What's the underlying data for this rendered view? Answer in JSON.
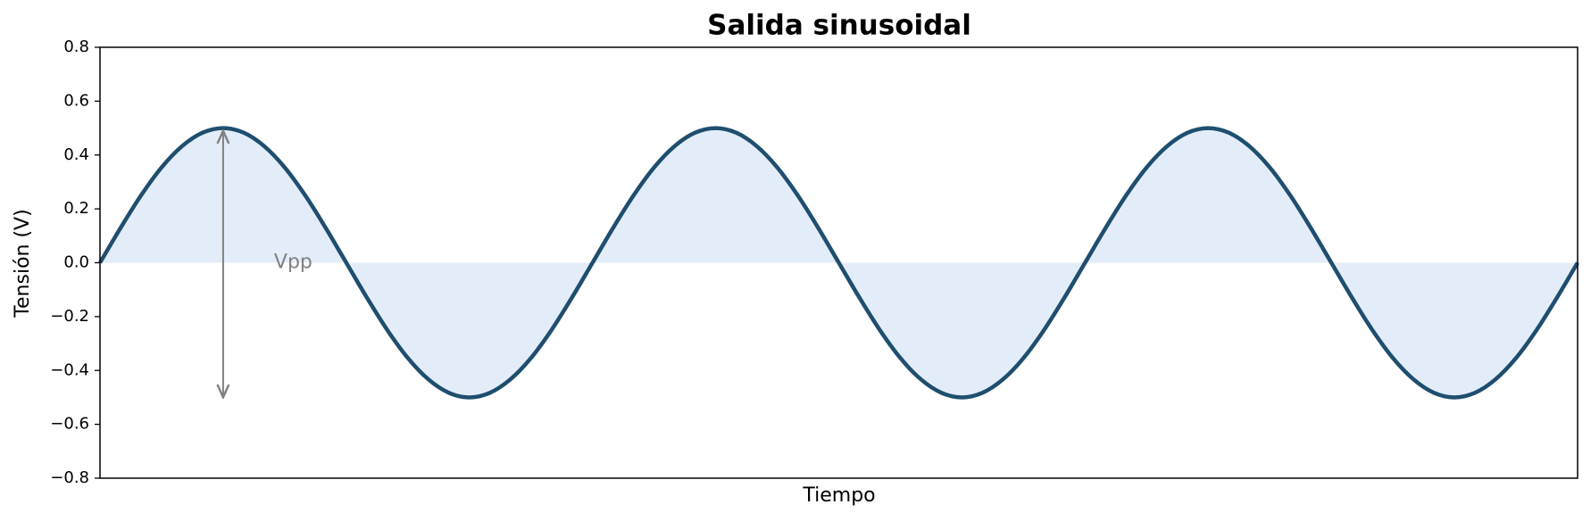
{
  "chart_data": {
    "type": "line",
    "title": "Salida sinusoidal",
    "xlabel": "Tiempo",
    "ylabel": "Tensión (V)",
    "x": [
      0,
      1,
      2,
      3,
      4,
      5,
      6,
      7,
      8,
      9,
      10,
      11,
      12,
      13,
      14,
      15,
      16,
      17,
      18,
      19,
      20,
      21,
      22,
      23,
      24,
      25,
      26,
      27,
      28,
      29,
      30,
      31,
      32,
      33,
      34,
      35,
      36,
      37,
      38,
      39,
      40,
      41,
      42,
      43,
      44,
      45,
      46,
      47,
      48,
      49,
      50,
      51,
      52,
      53,
      54,
      55,
      56,
      57,
      58,
      59,
      60,
      61,
      62,
      63,
      64,
      65,
      66,
      67,
      68,
      69,
      70,
      71,
      72
    ],
    "series": [
      {
        "color": "#1f4e6e",
        "fill": "#dce9f7",
        "values": [
          0,
          0.129,
          0.25,
          0.354,
          0.433,
          0.483,
          0.5,
          0.483,
          0.433,
          0.354,
          0.25,
          0.129,
          0,
          -0.129,
          -0.25,
          -0.354,
          -0.433,
          -0.483,
          -0.5,
          -0.483,
          -0.433,
          -0.354,
          -0.25,
          -0.129,
          0,
          0.129,
          0.25,
          0.354,
          0.433,
          0.483,
          0.5,
          0.483,
          0.433,
          0.354,
          0.25,
          0.129,
          0,
          -0.129,
          -0.25,
          -0.354,
          -0.433,
          -0.483,
          -0.5,
          -0.483,
          -0.433,
          -0.354,
          -0.25,
          -0.129,
          0,
          0.129,
          0.25,
          0.354,
          0.433,
          0.483,
          0.5,
          0.483,
          0.433,
          0.354,
          0.25,
          0.129,
          0,
          -0.129,
          -0.25,
          -0.354,
          -0.433,
          -0.483,
          -0.5,
          -0.483,
          -0.433,
          -0.354,
          -0.25,
          -0.129,
          0
        ]
      }
    ],
    "xlim": [
      0,
      72
    ],
    "ylim": [
      -0.8,
      0.8
    ],
    "yticks": [
      {
        "value": -0.8,
        "label": "−0.8"
      },
      {
        "value": -0.6,
        "label": "−0.6"
      },
      {
        "value": -0.4,
        "label": "−0.4"
      },
      {
        "value": -0.2,
        "label": "−0.2"
      },
      {
        "value": 0,
        "label": "0.0"
      },
      0.2,
      0.4,
      0.6,
      0.8
    ],
    "annotation": {
      "text": "Vpp",
      "x": 6,
      "y_top": 0.5,
      "y_bottom": -0.5,
      "color": "#808080"
    }
  }
}
